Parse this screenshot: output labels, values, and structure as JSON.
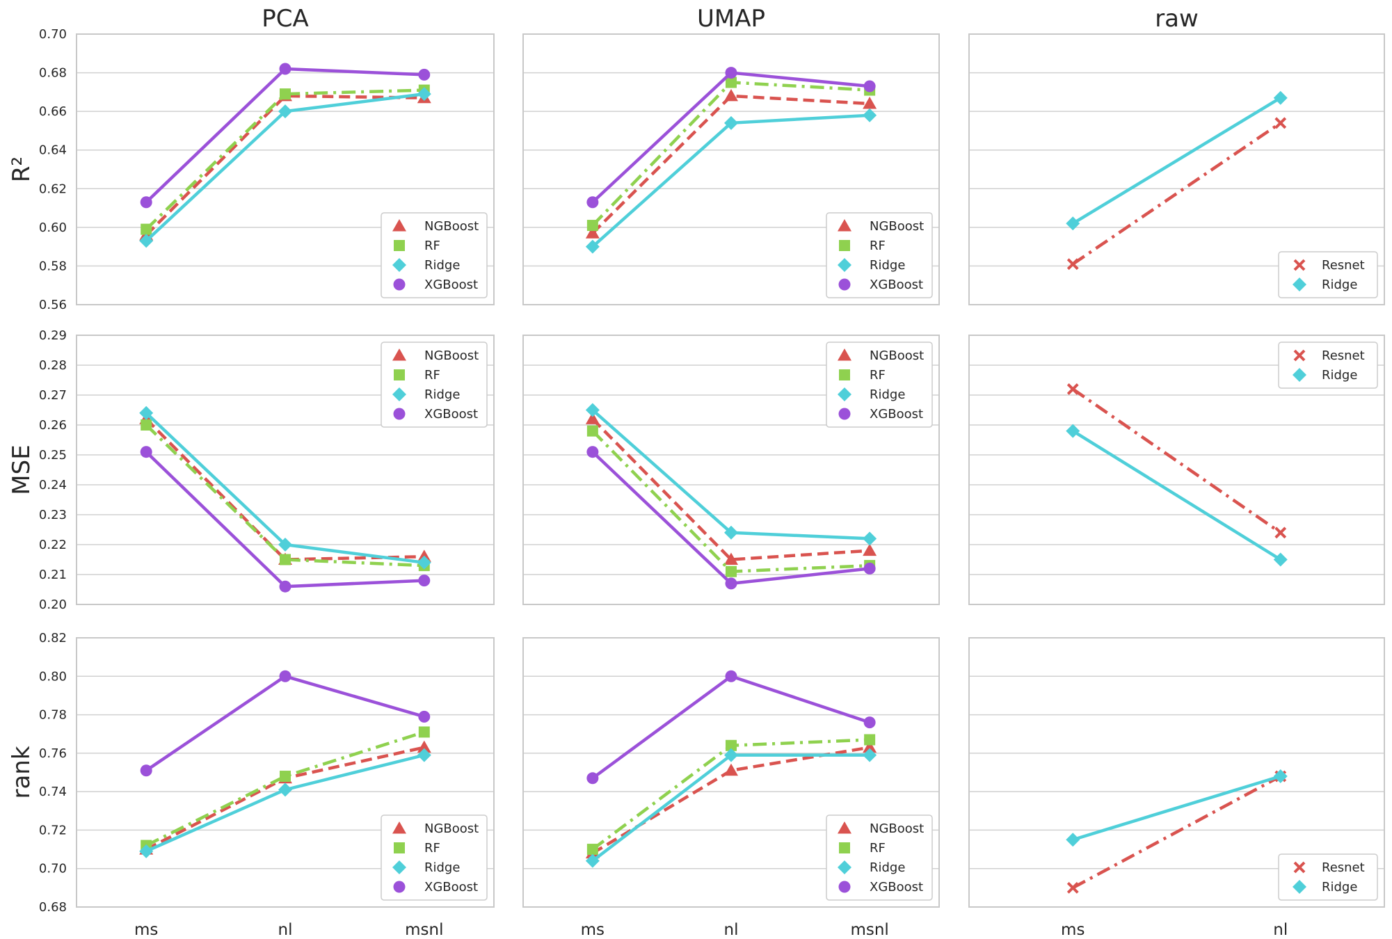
{
  "figure": {
    "columns": [
      "PCA",
      "UMAP",
      "raw"
    ],
    "rows": [
      "R²",
      "MSE",
      "rank"
    ]
  },
  "styles": {
    "NGBoost": {
      "color": "#d9534f",
      "marker": "triangle",
      "dash": "dashed"
    },
    "RF": {
      "color": "#8fd14f",
      "marker": "square",
      "dash": "dashdot"
    },
    "Ridge": {
      "color": "#4fcfd9",
      "marker": "diamond",
      "dash": "solid"
    },
    "XGBoost": {
      "color": "#9b51d9",
      "marker": "circle",
      "dash": "solid"
    },
    "Resnet": {
      "color": "#d9534f",
      "marker": "x",
      "dash": "dashdot"
    }
  },
  "chart_data": [
    {
      "type": "line",
      "row": 0,
      "col": 0,
      "title": "PCA",
      "ylabel": "R²",
      "categories": [
        "ms",
        "nl",
        "msnl"
      ],
      "ylim": [
        0.56,
        0.7
      ],
      "yticks": [
        "0.56",
        "0.58",
        "0.60",
        "0.62",
        "0.64",
        "0.66",
        "0.68",
        "0.70"
      ],
      "legend": "bottom-right",
      "series": [
        {
          "name": "NGBoost",
          "values": [
            0.596,
            0.668,
            0.667
          ]
        },
        {
          "name": "RF",
          "values": [
            0.599,
            0.669,
            0.671
          ]
        },
        {
          "name": "Ridge",
          "values": [
            0.593,
            0.66,
            0.669
          ]
        },
        {
          "name": "XGBoost",
          "values": [
            0.613,
            0.682,
            0.679
          ]
        }
      ]
    },
    {
      "type": "line",
      "row": 0,
      "col": 1,
      "title": "UMAP",
      "ylabel": "",
      "categories": [
        "ms",
        "nl",
        "msnl"
      ],
      "ylim": [
        0.56,
        0.7
      ],
      "legend": "bottom-right",
      "series": [
        {
          "name": "NGBoost",
          "values": [
            0.597,
            0.668,
            0.664
          ]
        },
        {
          "name": "RF",
          "values": [
            0.601,
            0.675,
            0.671
          ]
        },
        {
          "name": "Ridge",
          "values": [
            0.59,
            0.654,
            0.658
          ]
        },
        {
          "name": "XGBoost",
          "values": [
            0.613,
            0.68,
            0.673
          ]
        }
      ]
    },
    {
      "type": "line",
      "row": 0,
      "col": 2,
      "title": "raw",
      "ylabel": "",
      "categories": [
        "ms",
        "nl"
      ],
      "ylim": [
        0.56,
        0.7
      ],
      "legend": "bottom-right",
      "series": [
        {
          "name": "Resnet",
          "values": [
            0.581,
            0.654
          ]
        },
        {
          "name": "Ridge",
          "values": [
            0.602,
            0.667
          ]
        }
      ]
    },
    {
      "type": "line",
      "row": 1,
      "col": 0,
      "title": "",
      "ylabel": "MSE",
      "categories": [
        "ms",
        "nl",
        "msnl"
      ],
      "ylim": [
        0.2,
        0.29
      ],
      "yticks": [
        "0.20",
        "0.21",
        "0.22",
        "0.23",
        "0.24",
        "0.25",
        "0.26",
        "0.27",
        "0.28",
        "0.29"
      ],
      "legend": "top-right",
      "series": [
        {
          "name": "NGBoost",
          "values": [
            0.262,
            0.215,
            0.216
          ]
        },
        {
          "name": "RF",
          "values": [
            0.26,
            0.215,
            0.213
          ]
        },
        {
          "name": "Ridge",
          "values": [
            0.264,
            0.22,
            0.214
          ]
        },
        {
          "name": "XGBoost",
          "values": [
            0.251,
            0.206,
            0.208
          ]
        }
      ]
    },
    {
      "type": "line",
      "row": 1,
      "col": 1,
      "title": "",
      "ylabel": "",
      "categories": [
        "ms",
        "nl",
        "msnl"
      ],
      "ylim": [
        0.2,
        0.29
      ],
      "legend": "top-right",
      "series": [
        {
          "name": "NGBoost",
          "values": [
            0.262,
            0.215,
            0.218
          ]
        },
        {
          "name": "RF",
          "values": [
            0.258,
            0.211,
            0.213
          ]
        },
        {
          "name": "Ridge",
          "values": [
            0.265,
            0.224,
            0.222
          ]
        },
        {
          "name": "XGBoost",
          "values": [
            0.251,
            0.207,
            0.212
          ]
        }
      ]
    },
    {
      "type": "line",
      "row": 1,
      "col": 2,
      "title": "",
      "ylabel": "",
      "categories": [
        "ms",
        "nl"
      ],
      "ylim": [
        0.2,
        0.29
      ],
      "legend": "top-right",
      "series": [
        {
          "name": "Resnet",
          "values": [
            0.272,
            0.224
          ]
        },
        {
          "name": "Ridge",
          "values": [
            0.258,
            0.215
          ]
        }
      ]
    },
    {
      "type": "line",
      "row": 2,
      "col": 0,
      "title": "",
      "ylabel": "rank",
      "categories": [
        "ms",
        "nl",
        "msnl"
      ],
      "ylim": [
        0.68,
        0.82
      ],
      "yticks": [
        "0.68",
        "0.70",
        "0.72",
        "0.74",
        "0.76",
        "0.78",
        "0.80",
        "0.82"
      ],
      "legend": "bottom-right",
      "series": [
        {
          "name": "NGBoost",
          "values": [
            0.71,
            0.747,
            0.763
          ]
        },
        {
          "name": "RF",
          "values": [
            0.712,
            0.748,
            0.771
          ]
        },
        {
          "name": "Ridge",
          "values": [
            0.709,
            0.741,
            0.759
          ]
        },
        {
          "name": "XGBoost",
          "values": [
            0.751,
            0.8,
            0.779
          ]
        }
      ]
    },
    {
      "type": "line",
      "row": 2,
      "col": 1,
      "title": "",
      "ylabel": "",
      "categories": [
        "ms",
        "nl",
        "msnl"
      ],
      "ylim": [
        0.68,
        0.82
      ],
      "legend": "bottom-right",
      "series": [
        {
          "name": "NGBoost",
          "values": [
            0.708,
            0.751,
            0.763
          ]
        },
        {
          "name": "RF",
          "values": [
            0.71,
            0.764,
            0.767
          ]
        },
        {
          "name": "Ridge",
          "values": [
            0.704,
            0.759,
            0.759
          ]
        },
        {
          "name": "XGBoost",
          "values": [
            0.747,
            0.8,
            0.776
          ]
        }
      ]
    },
    {
      "type": "line",
      "row": 2,
      "col": 2,
      "title": "",
      "ylabel": "",
      "categories": [
        "ms",
        "nl"
      ],
      "ylim": [
        0.68,
        0.82
      ],
      "legend": "bottom-right",
      "series": [
        {
          "name": "Resnet",
          "values": [
            0.69,
            0.748
          ]
        },
        {
          "name": "Ridge",
          "values": [
            0.715,
            0.748
          ]
        }
      ]
    }
  ]
}
